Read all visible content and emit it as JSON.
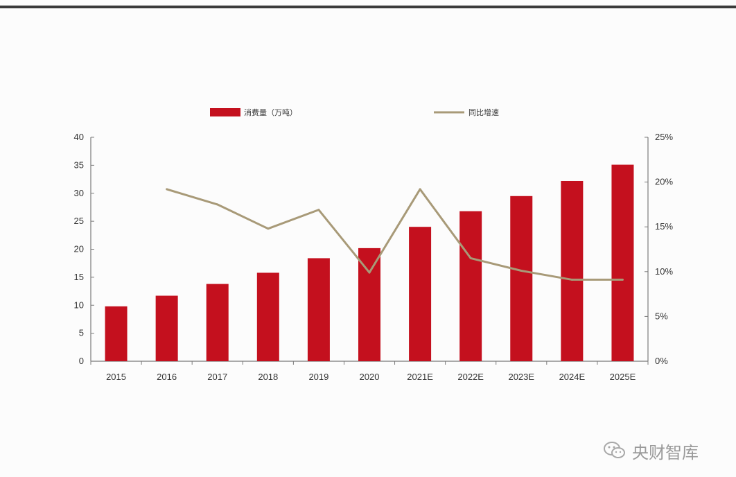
{
  "chart_data": {
    "type": "bar",
    "categories": [
      "2015",
      "2016",
      "2017",
      "2018",
      "2019",
      "2020",
      "2021E",
      "2022E",
      "2023E",
      "2024E",
      "2025E"
    ],
    "series": [
      {
        "name": "消费量（万吨）",
        "kind": "bar",
        "axis": "left",
        "color": "#c4101e",
        "values": [
          9.8,
          11.7,
          13.8,
          15.8,
          18.4,
          20.2,
          24.0,
          26.8,
          29.5,
          32.2,
          35.1
        ]
      },
      {
        "name": "同比增速",
        "kind": "line",
        "axis": "right",
        "color": "#a89a78",
        "values": [
          null,
          19.2,
          17.5,
          14.8,
          16.9,
          9.9,
          19.2,
          11.5,
          10.1,
          9.1,
          9.1
        ]
      }
    ],
    "y_left": {
      "ylim": [
        0,
        40
      ],
      "ticks": [
        "0",
        "5",
        "10",
        "15",
        "20",
        "25",
        "30",
        "35",
        "40"
      ]
    },
    "y_right": {
      "ylim": [
        0,
        25
      ],
      "ticks": [
        "0%",
        "5%",
        "10%",
        "15%",
        "20%",
        "25%"
      ]
    },
    "grid": false,
    "legend_position": "top"
  },
  "watermark": {
    "text": "央财智库",
    "icon": "wechat-icon"
  }
}
